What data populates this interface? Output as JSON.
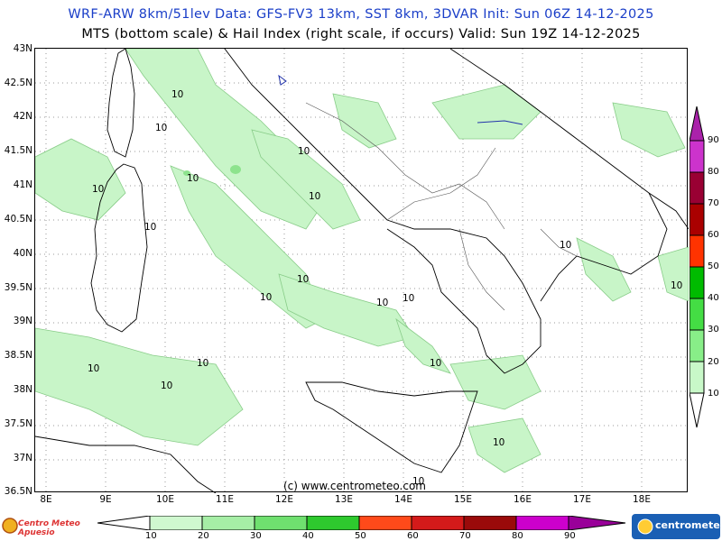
{
  "header": {
    "line1": "WRF-ARW 8km/51lev  Data: GFS-FV3 13km, SST 8km, 3DVAR   Init: Sun 06Z 14-12-2025",
    "line2": "MTS (bottom scale) & Hail Index (right scale, if occurs) Valid: Sun 19Z 14-12-2025"
  },
  "latitude_labels": [
    "43N",
    "42.5N",
    "42N",
    "41.5N",
    "41N",
    "40.5N",
    "40N",
    "39.5N",
    "39N",
    "38.5N",
    "38N",
    "37.5N",
    "37N",
    "36.5N"
  ],
  "longitude_labels": [
    "8E",
    "9E",
    "10E",
    "11E",
    "12E",
    "13E",
    "14E",
    "15E",
    "16E",
    "17E",
    "18E"
  ],
  "contour_labels": [
    "10",
    "10",
    "10",
    "10",
    "10",
    "10",
    "10",
    "10",
    "10",
    "10",
    "10",
    "10",
    "10",
    "10",
    "10",
    "10",
    "10",
    "10",
    "10",
    "10"
  ],
  "credit": "(c) www.centrometeo.com",
  "bottom_scale": {
    "labels": [
      "10",
      "20",
      "30",
      "40",
      "50",
      "60",
      "70",
      "80",
      "90"
    ],
    "colors": [
      "#cff8cf",
      "#a6eea6",
      "#6fe06f",
      "#2ec92e",
      "#ff4a1a",
      "#d41a1a",
      "#9a0a0a",
      "#cc00cc",
      "#990099"
    ]
  },
  "right_scale": {
    "labels": [
      "90",
      "80",
      "70",
      "60",
      "50",
      "40",
      "30",
      "20",
      "10"
    ],
    "colors": [
      "#cc33cc",
      "#990033",
      "#aa0000",
      "#ff3300",
      "#00bb00",
      "#44dd44",
      "#88ee88",
      "#c8f8c8"
    ]
  },
  "logos": {
    "left": "Centro Meteo Apuesio",
    "right": "centrometeo"
  },
  "colors": {
    "field_light": "#c8f5c8",
    "field_mid": "#8de38d",
    "coast": "#000000",
    "border": "#555555",
    "title_blue": "#1a3ec8"
  }
}
